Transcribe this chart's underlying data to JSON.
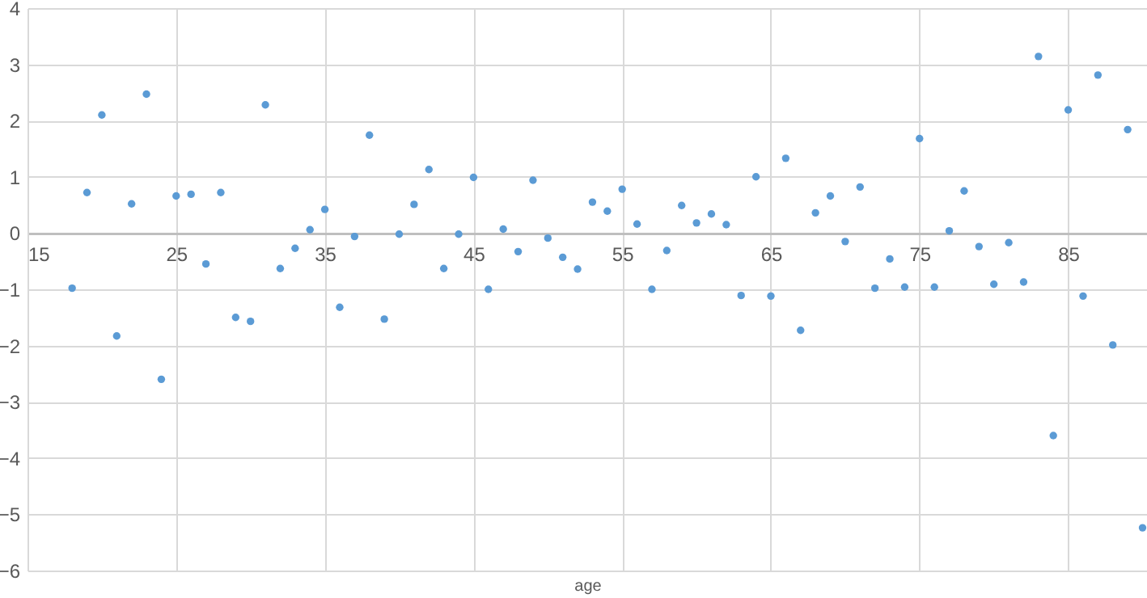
{
  "chart_data": {
    "type": "scatter",
    "xlabel": "age",
    "xlim": [
      15,
      90.3
    ],
    "xticks": [
      15,
      25,
      35,
      45,
      55,
      65,
      75,
      85
    ],
    "ylim": [
      -6,
      4
    ],
    "yticks": [
      -6,
      -5,
      -4,
      -3,
      -2,
      -1,
      0,
      1,
      2,
      3,
      4
    ],
    "grid": true,
    "marker": "circle",
    "x": [
      18,
      19,
      20,
      21,
      22,
      23,
      24,
      25,
      26,
      27,
      28,
      29,
      30,
      31,
      32,
      33,
      34,
      35,
      36,
      37,
      38,
      39,
      40,
      41,
      42,
      43,
      44,
      45,
      46,
      47,
      48,
      49,
      50,
      51,
      52,
      53,
      54,
      55,
      56,
      57,
      58,
      59,
      60,
      61,
      62,
      63,
      64,
      65,
      66,
      67,
      68,
      69,
      70,
      71,
      72,
      73,
      74,
      75,
      76,
      77,
      78,
      79,
      80,
      81,
      82,
      83,
      84,
      85,
      86,
      87,
      88,
      89,
      90
    ],
    "series": [
      {
        "color": "#5b9bd5",
        "values": [
          -0.98,
          0.72,
          2.1,
          -1.83,
          0.52,
          2.47,
          -2.6,
          0.66,
          0.69,
          -0.55,
          0.72,
          -1.5,
          -1.57,
          2.28,
          -0.63,
          -0.27,
          0.06,
          0.42,
          -1.32,
          -0.06,
          1.74,
          -1.53,
          -0.02,
          0.51,
          1.13,
          -0.63,
          -0.02,
          0.99,
          -1.0,
          0.07,
          -0.33,
          0.94,
          -0.09,
          -0.43,
          -0.64,
          0.55,
          0.39,
          0.78,
          0.16,
          -1.0,
          -0.31,
          0.49,
          0.18,
          0.34,
          0.15,
          -1.11,
          1.0,
          -1.12,
          1.33,
          -1.73,
          0.36,
          0.66,
          -0.15,
          0.82,
          -0.98,
          -0.46,
          -0.96,
          1.68,
          -0.96,
          0.04,
          0.75,
          -0.24,
          -0.91,
          -0.17,
          -0.87,
          3.14,
          -3.6,
          2.19,
          -1.12,
          2.81,
          -1.99,
          1.84,
          -5.24
        ]
      }
    ]
  }
}
